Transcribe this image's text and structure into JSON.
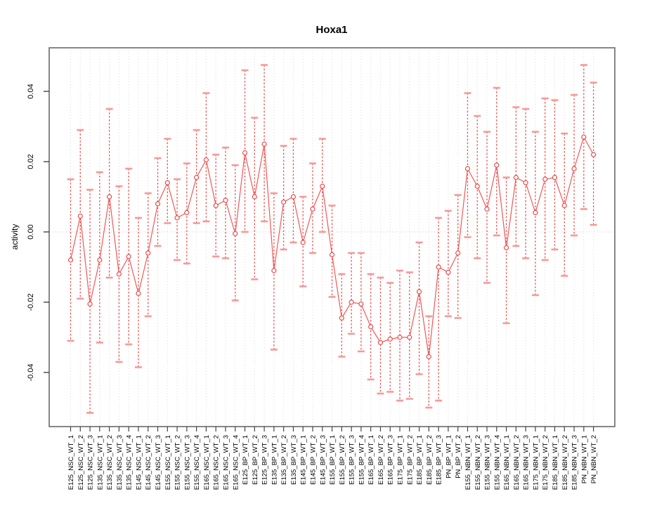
{
  "page": {
    "background": "#ffffff"
  },
  "chart": {
    "title": "Hoxa1",
    "ylabel": "activity",
    "y_tick_labels": [
      "-0.04",
      "-0.02",
      "0.00",
      "0.02",
      "0.04"
    ],
    "colors": {
      "errorbar_line": "#ee5555",
      "errorbar_cap": "#f79999",
      "point_stroke": "#e84c4c",
      "point_fill": "#ffffff",
      "series_line": "#ef5858",
      "gridline": "#dcdcdc",
      "zero_line": "#c8c8c8",
      "box_stroke": "#7a7a7a",
      "tick_stroke": "#444444"
    }
  },
  "chart_data": {
    "type": "line",
    "title": "Hoxa1",
    "xlabel": "",
    "ylabel": "activity",
    "ylim": [
      -0.0554,
      0.052
    ],
    "y_ticks": [
      -0.04,
      -0.02,
      0.0,
      0.02,
      0.04
    ],
    "grid": "vertical dotted gridline at every category; dotted horizontal line at y=0",
    "legend": "none",
    "marker": "open-circle",
    "error_bars": "asymmetric, dashed vertical line with solid caps",
    "categories": [
      "E125_NSC_WT_1",
      "E125_NSC_WT_2",
      "E125_NSC_WT_3",
      "E135_NSC_WT_1",
      "E135_NSC_WT_2",
      "E135_NSC_WT_3",
      "E135_NSC_WT_4",
      "E145_NSC_WT_1",
      "E145_NSC_WT_2",
      "E145_NSC_WT_3",
      "E155_NSC_WT_1",
      "E155_NSC_WT_2",
      "E155_NSC_WT_3",
      "E155_NSC_WT_4",
      "E165_NSC_WT_1",
      "E165_NSC_WT_2",
      "E165_NSC_WT_3",
      "E165_NSC_WT_4",
      "E125_BP_WT_1",
      "E125_BP_WT_2",
      "E125_BP_WT_3",
      "E135_BP_WT_1",
      "E135_BP_WT_2",
      "E135_BP_WT_3",
      "E145_BP_WT_1",
      "E145_BP_WT_2",
      "E145_BP_WT_3",
      "E155_BP_WT_1",
      "E155_BP_WT_2",
      "E155_BP_WT_3",
      "E155_BP_WT_4",
      "E165_BP_WT_1",
      "E165_BP_WT_2",
      "E165_BP_WT_3",
      "E175_BP_WT_1",
      "E175_BP_WT_2",
      "E185_BP_WT_1",
      "E185_BP_WT_2",
      "E185_BP_WT_3",
      "PN_BP_WT_1",
      "PN_BP_WT_2",
      "E155_NBN_WT_1",
      "E155_NBN_WT_2",
      "E155_NBN_WT_3",
      "E155_NBN_WT_4",
      "E165_NBN_WT_1",
      "E165_NBN_WT_2",
      "E165_NBN_WT_3",
      "E175_NBN_WT_1",
      "E175_NBN_WT_2",
      "E185_NBN_WT_1",
      "E185_NBN_WT_2",
      "E185_NBN_WT_3",
      "PN_NBN_WT_1",
      "PN_NBN_WT_2"
    ],
    "values": [
      -0.008,
      0.0045,
      -0.0205,
      -0.008,
      0.01,
      -0.012,
      -0.007,
      -0.0175,
      -0.006,
      0.008,
      0.014,
      0.004,
      0.0055,
      0.0155,
      0.0205,
      0.0075,
      0.009,
      -0.0005,
      0.0225,
      0.01,
      0.025,
      -0.011,
      0.0085,
      0.01,
      -0.003,
      0.0065,
      0.013,
      -0.0065,
      -0.0245,
      -0.02,
      -0.0205,
      -0.027,
      -0.0315,
      -0.0305,
      -0.03,
      -0.03,
      -0.017,
      -0.0355,
      -0.01,
      -0.0115,
      -0.006,
      0.018,
      0.013,
      0.0065,
      0.019,
      -0.0045,
      0.0155,
      0.014,
      0.0055,
      0.015,
      0.0155,
      0.0075,
      0.018,
      0.027,
      0.022
    ],
    "upper": [
      0.015,
      0.029,
      0.012,
      0.017,
      0.035,
      0.013,
      0.018,
      0.004,
      0.011,
      0.021,
      0.0265,
      0.015,
      0.0195,
      0.029,
      0.0395,
      0.022,
      0.024,
      0.019,
      0.046,
      0.0325,
      0.0475,
      0.011,
      0.0245,
      0.0265,
      0.01,
      0.0195,
      0.0265,
      0.0075,
      -0.012,
      -0.006,
      -0.006,
      -0.012,
      -0.013,
      -0.0145,
      -0.011,
      -0.0115,
      -0.003,
      -0.024,
      0.004,
      0.006,
      0.0105,
      0.0395,
      0.033,
      0.0285,
      0.041,
      0.0155,
      0.0355,
      0.035,
      0.0285,
      0.038,
      0.0375,
      0.028,
      0.039,
      0.0475,
      0.0425
    ],
    "lower": [
      -0.031,
      -0.019,
      -0.0515,
      -0.0315,
      -0.013,
      -0.037,
      -0.032,
      -0.0385,
      -0.024,
      -0.004,
      0.0025,
      -0.008,
      -0.009,
      0.0025,
      0.003,
      -0.007,
      -0.0075,
      -0.0195,
      0.0,
      -0.0135,
      0.003,
      -0.0335,
      -0.005,
      -0.003,
      -0.0155,
      -0.006,
      0.0,
      -0.0185,
      -0.0355,
      -0.029,
      -0.034,
      -0.042,
      -0.046,
      -0.0455,
      -0.048,
      -0.0475,
      -0.0405,
      -0.05,
      -0.048,
      -0.024,
      -0.0245,
      -0.0015,
      -0.0075,
      -0.0145,
      -0.001,
      -0.026,
      -0.004,
      -0.0075,
      -0.018,
      -0.008,
      -0.005,
      -0.0125,
      -0.001,
      0.0065,
      0.002
    ]
  }
}
